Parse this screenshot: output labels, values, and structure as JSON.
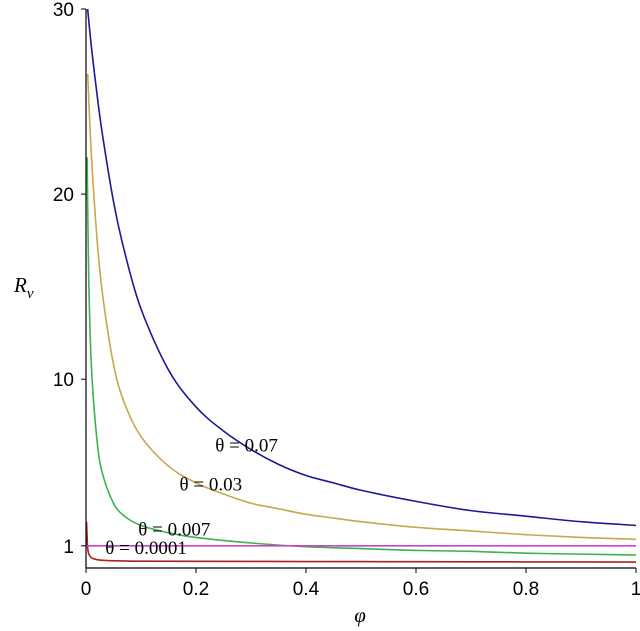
{
  "chart_data": {
    "type": "line",
    "xlabel": "φ",
    "ylabel": "R",
    "ylabel_subscript": "v",
    "xlim": [
      0,
      1
    ],
    "ylim": [
      -0.2,
      30
    ],
    "xticks": [
      0,
      0.2,
      0.4,
      0.6,
      0.8,
      1
    ],
    "xtick_labels": [
      "0",
      "0.2",
      "0.4",
      "0.6",
      "0.8",
      "1"
    ],
    "yticks": [
      1,
      10,
      20,
      30
    ],
    "ytick_labels": [
      "1",
      "10",
      "20",
      "30"
    ],
    "grid": false,
    "legend": "none",
    "series": [
      {
        "name": "θ = 0.07",
        "color": "#1a1a99",
        "x": [
          0.003,
          0.01,
          0.02,
          0.03,
          0.05,
          0.07,
          0.1,
          0.15,
          0.2,
          0.25,
          0.3,
          0.35,
          0.4,
          0.45,
          0.5,
          0.6,
          0.7,
          0.8,
          0.9,
          1.0
        ],
        "y": [
          30,
          27.9,
          25.4,
          23.2,
          19.6,
          16.9,
          13.8,
          10.5,
          8.5,
          7.2,
          6.2,
          5.4,
          4.8,
          4.4,
          4.0,
          3.4,
          2.9,
          2.6,
          2.3,
          2.1
        ]
      },
      {
        "name": "θ = 0.03",
        "color": "#c8a84a",
        "x": [
          0.003,
          0.01,
          0.02,
          0.03,
          0.05,
          0.07,
          0.1,
          0.15,
          0.2,
          0.25,
          0.3,
          0.35,
          0.4,
          0.45,
          0.5,
          0.6,
          0.7,
          0.8,
          0.9,
          1.0
        ],
        "y": [
          26.5,
          22.0,
          17.6,
          14.6,
          10.8,
          8.7,
          6.9,
          5.3,
          4.4,
          3.8,
          3.3,
          3.0,
          2.7,
          2.5,
          2.3,
          2.0,
          1.8,
          1.6,
          1.45,
          1.35
        ]
      },
      {
        "name": "θ = 0.007",
        "color": "#3cb44b",
        "x": [
          0.002,
          0.005,
          0.01,
          0.02,
          0.03,
          0.05,
          0.07,
          0.1,
          0.15,
          0.2,
          0.3,
          0.4,
          0.5,
          0.6,
          0.7,
          0.8,
          0.9,
          1.0
        ],
        "y": [
          22.0,
          15.4,
          10.6,
          6.7,
          4.9,
          3.3,
          2.6,
          2.1,
          1.7,
          1.45,
          1.15,
          0.95,
          0.85,
          0.75,
          0.7,
          0.6,
          0.55,
          0.5
        ]
      },
      {
        "name": "θ = 0.0001",
        "color": "#aa2222",
        "x": [
          0.001,
          0.003,
          0.006,
          0.01,
          0.02,
          0.04,
          0.07,
          0.1,
          0.2,
          0.4,
          0.6,
          0.8,
          1.0
        ],
        "y": [
          2.3,
          0.9,
          0.5,
          0.35,
          0.25,
          0.2,
          0.18,
          0.17,
          0.16,
          0.15,
          0.14,
          0.13,
          0.12
        ]
      },
      {
        "name": "",
        "color": "#cc44cc",
        "x": [
          0,
          1
        ],
        "y": [
          1,
          1
        ]
      }
    ],
    "annotations": [
      {
        "text": "θ = 0.07",
        "x": 0.235,
        "y": 6.1
      },
      {
        "text": "θ = 0.03",
        "x": 0.17,
        "y": 4.0
      },
      {
        "text": "θ = 0.007",
        "x": 0.095,
        "y": 1.55
      },
      {
        "text": "θ = 0.0001",
        "x": 0.035,
        "y": 0.55
      }
    ]
  }
}
